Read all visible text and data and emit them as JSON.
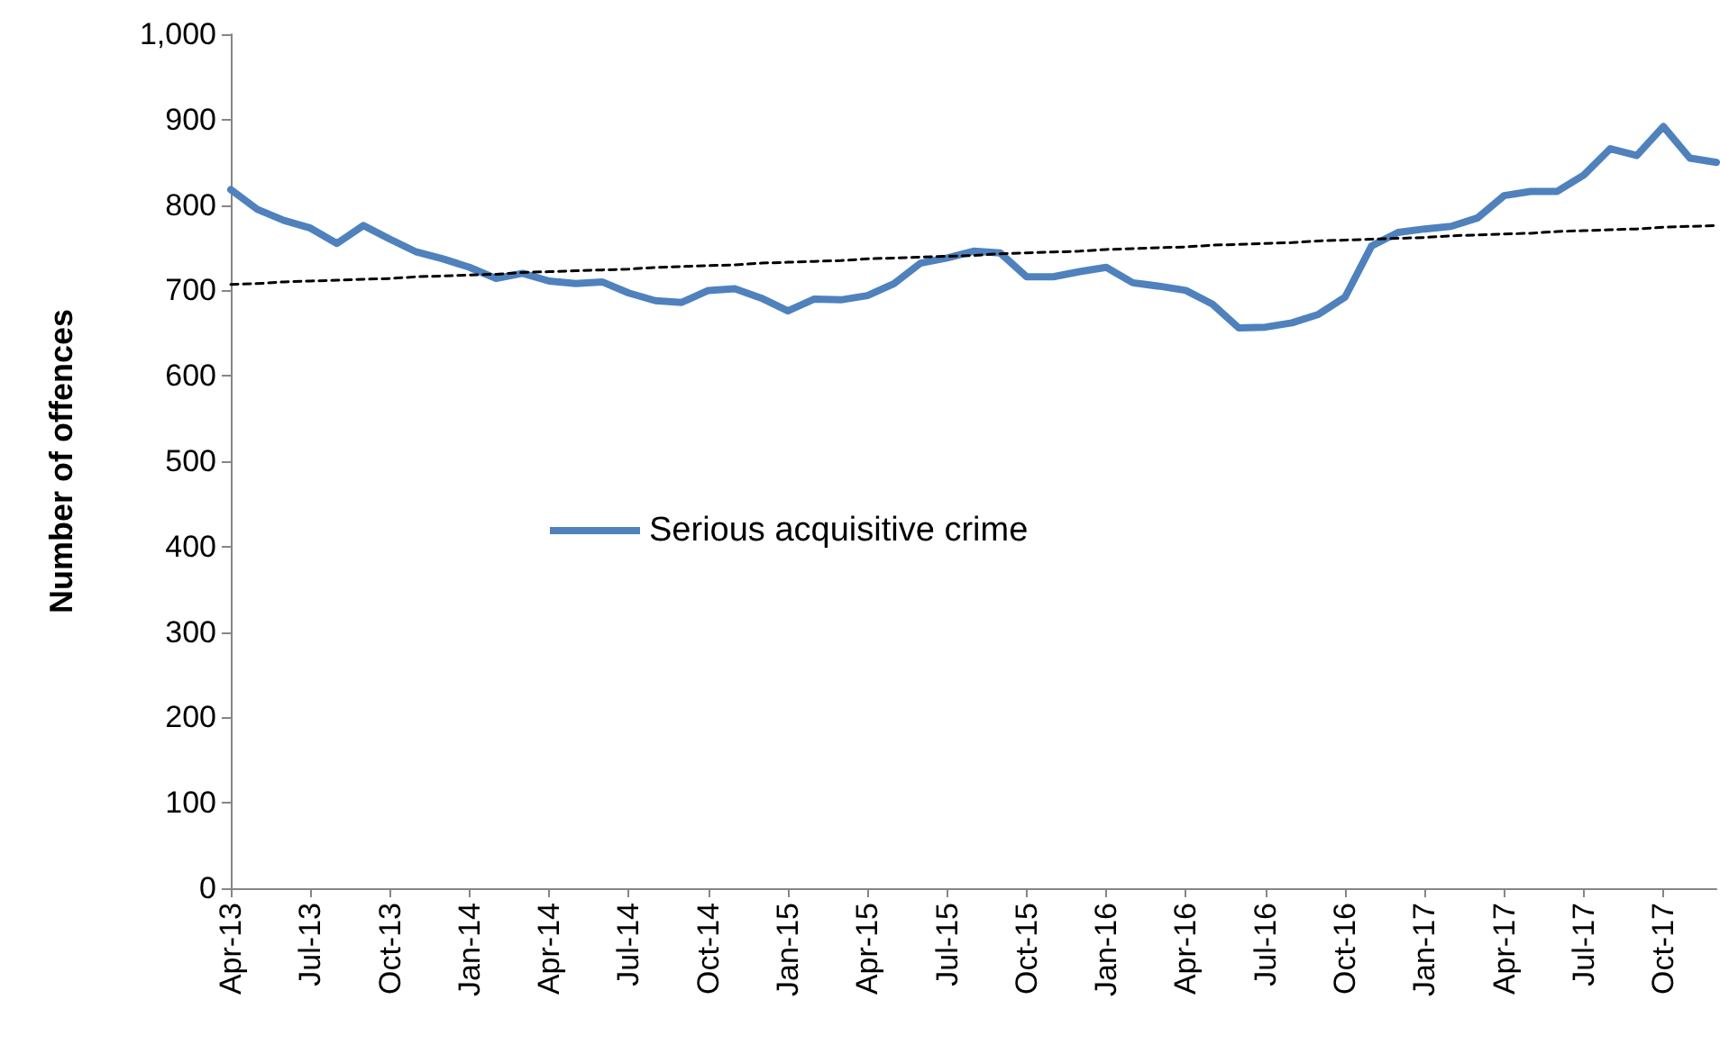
{
  "chart_data": {
    "type": "line",
    "ylabel": "Number of offences",
    "categories": [
      "Apr-13",
      null,
      null,
      "Jul-13",
      null,
      null,
      "Oct-13",
      null,
      null,
      "Jan-14",
      null,
      null,
      "Apr-14",
      null,
      null,
      "Jul-14",
      null,
      null,
      "Oct-14",
      null,
      null,
      "Jan-15",
      null,
      null,
      "Apr-15",
      null,
      null,
      "Jul-15",
      null,
      null,
      "Oct-15",
      null,
      null,
      "Jan-16",
      null,
      null,
      "Apr-16",
      null,
      null,
      "Jul-16",
      null,
      null,
      "Oct-16",
      null,
      null,
      "Jan-17",
      null,
      null,
      "Apr-17",
      null,
      null,
      "Jul-17",
      null,
      null,
      "Oct-17",
      null,
      null
    ],
    "series": [
      {
        "name": "Serious acquisitive crime",
        "color": "#4f81bd",
        "line_style": "solid",
        "values": [
          818,
          795,
          782,
          773,
          755,
          776,
          760,
          745,
          737,
          727,
          714,
          720,
          711,
          708,
          710,
          697,
          688,
          686,
          700,
          702,
          691,
          676,
          690,
          689,
          694,
          708,
          732,
          738,
          746,
          744,
          716,
          716,
          722,
          727,
          709,
          705,
          700,
          684,
          656,
          657,
          662,
          672,
          692,
          752,
          768,
          772,
          775,
          785,
          811,
          816,
          816,
          835,
          866,
          858,
          892,
          855,
          850
        ]
      },
      {
        "color": "#000000",
        "line_style": "dashed",
        "values": [
          707,
          708,
          710,
          711,
          712,
          713,
          714,
          716,
          717,
          718,
          719,
          721,
          722,
          723,
          724,
          725,
          727,
          728,
          729,
          730,
          732,
          733,
          734,
          735,
          737,
          738,
          739,
          740,
          741,
          743,
          744,
          745,
          746,
          748,
          749,
          750,
          751,
          753,
          754,
          755,
          756,
          758,
          759,
          760,
          761,
          762,
          764,
          765,
          766,
          767,
          769,
          770,
          771,
          772,
          774,
          775,
          776
        ]
      }
    ],
    "ylim": [
      0,
      1000
    ],
    "yticks": [
      0,
      100,
      200,
      300,
      400,
      500,
      600,
      700,
      800,
      900,
      {
        "value": 1000,
        "label": "1,000"
      }
    ],
    "grid": false,
    "legend": "center left",
    "marker": "none"
  }
}
